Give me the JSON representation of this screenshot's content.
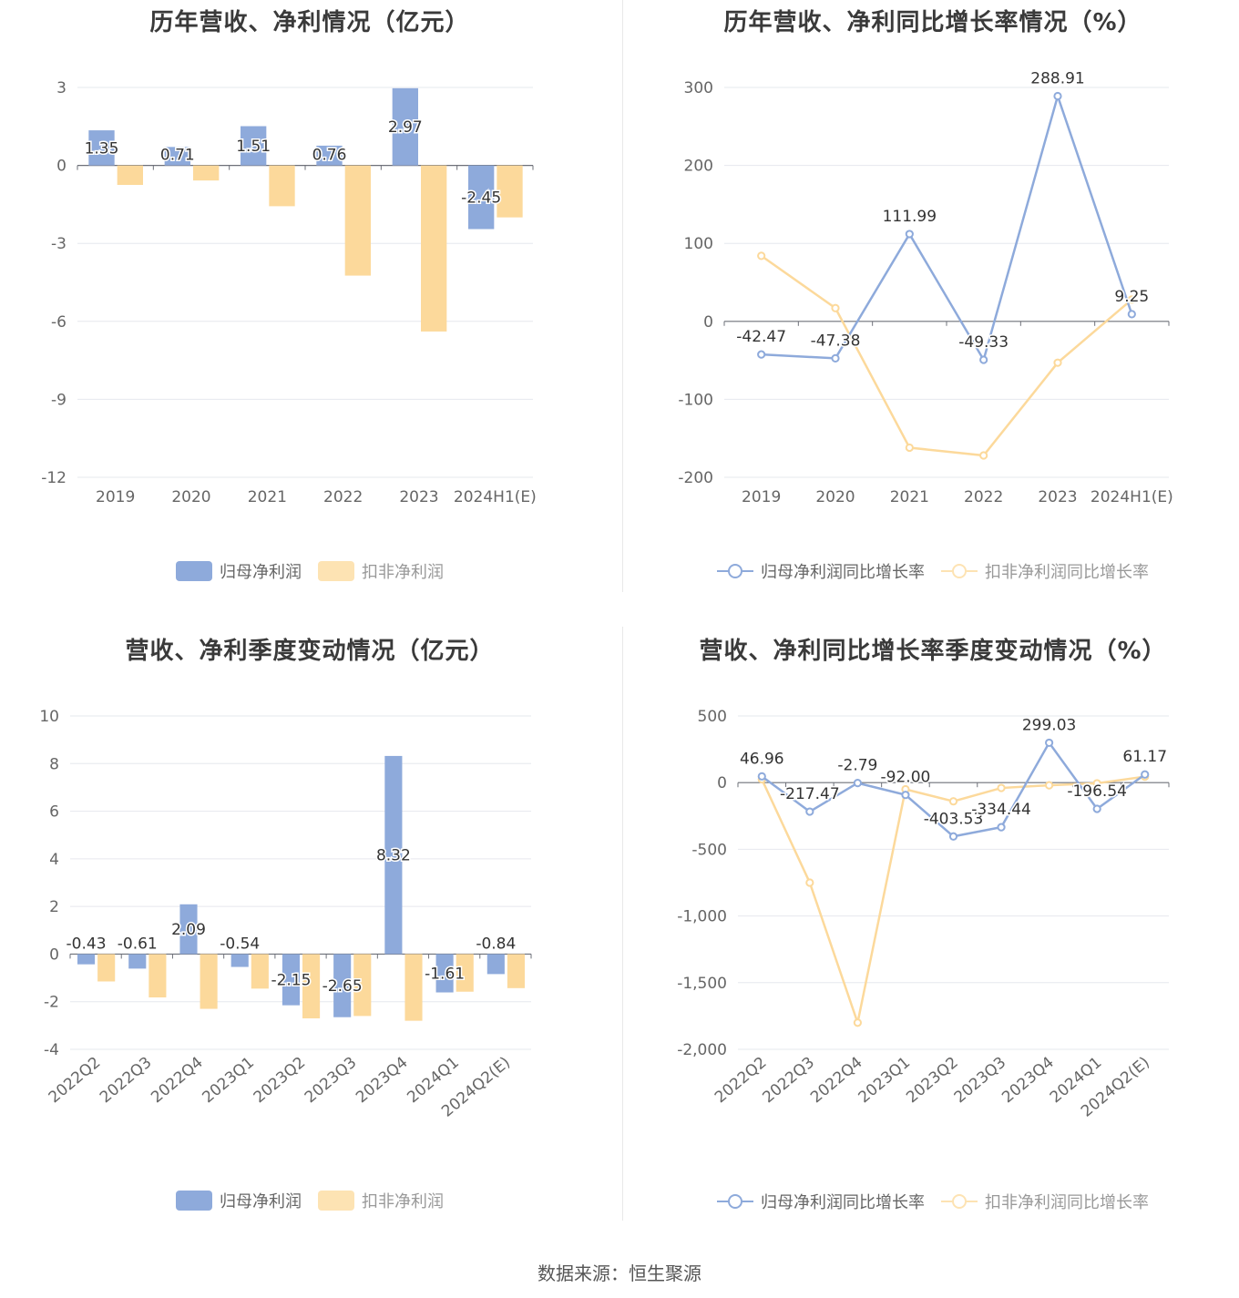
{
  "colors": {
    "blue": "#8eaadb",
    "yellow": "#fcd99b",
    "axis": "#666666",
    "grid": "#e6e8ee",
    "text": "#333333"
  },
  "source": "数据来源：恒生聚源",
  "chart_data": [
    {
      "id": "annual-profit",
      "type": "bar",
      "title": "历年营收、净利情况（亿元）",
      "categories": [
        "2019",
        "2020",
        "2021",
        "2022",
        "2023",
        "2024H1(E)"
      ],
      "series": [
        {
          "name": "归母净利润",
          "color": "#8eaadb",
          "values": [
            1.35,
            0.71,
            1.51,
            0.76,
            2.97,
            -2.45
          ],
          "labels": [
            "1.35",
            "0.71",
            "1.51",
            "0.76",
            "2.97",
            "-2.45"
          ]
        },
        {
          "name": "扣非净利润",
          "color": "#fcd99b",
          "values": [
            -0.75,
            -0.58,
            -1.57,
            -4.24,
            -6.39,
            -2.0
          ]
        }
      ],
      "yticks": [
        3,
        0,
        -3,
        -6,
        -9,
        -12
      ],
      "ylim": [
        -12,
        3
      ]
    },
    {
      "id": "annual-growth",
      "type": "line",
      "title": "历年营收、净利同比增长率情况（%）",
      "categories": [
        "2019",
        "2020",
        "2021",
        "2022",
        "2023",
        "2024H1(E)"
      ],
      "series": [
        {
          "name": "归母净利润同比增长率",
          "color": "#8eaadb",
          "values": [
            -42.47,
            -47.38,
            111.99,
            -49.33,
            288.91,
            9.25
          ],
          "labels": [
            "-42.47",
            "-47.38",
            "111.99",
            "-49.33",
            "288.91",
            "9.25"
          ]
        },
        {
          "name": "扣非净利润同比增长率",
          "color": "#fcd99b",
          "values": [
            84,
            17,
            -162,
            -172,
            -53,
            28
          ]
        }
      ],
      "yticks": [
        300,
        200,
        100,
        0,
        -100,
        -200
      ],
      "ylim": [
        -200,
        300
      ]
    },
    {
      "id": "quarterly-profit",
      "type": "bar",
      "title": "营收、净利季度变动情况（亿元）",
      "categories": [
        "2022Q2",
        "2022Q3",
        "2022Q4",
        "2023Q1",
        "2023Q2",
        "2023Q3",
        "2023Q4",
        "2024Q1",
        "2024Q2(E)"
      ],
      "series": [
        {
          "name": "归母净利润",
          "color": "#8eaadb",
          "values": [
            -0.43,
            -0.61,
            2.09,
            -0.54,
            -2.15,
            -2.65,
            8.32,
            -1.61,
            -0.84
          ],
          "labels": [
            "-0.43",
            "-0.61",
            "2.09",
            "-0.54",
            "-2.15",
            "-2.65",
            "8.32",
            "-1.61",
            "-0.84"
          ]
        },
        {
          "name": "扣非净利润",
          "color": "#fcd99b",
          "values": [
            -1.15,
            -1.82,
            -2.3,
            -1.45,
            -2.7,
            -2.6,
            -2.8,
            -1.58,
            -1.43
          ]
        }
      ],
      "yticks": [
        10,
        8,
        6,
        4,
        2,
        0,
        -2,
        -4
      ],
      "ylim": [
        -4,
        10
      ]
    },
    {
      "id": "quarterly-growth",
      "type": "line",
      "title": "营收、净利同比增长率季度变动情况（%）",
      "categories": [
        "2022Q2",
        "2022Q3",
        "2022Q4",
        "2023Q1",
        "2023Q2",
        "2023Q3",
        "2023Q4",
        "2024Q1",
        "2024Q2(E)"
      ],
      "series": [
        {
          "name": "归母净利润同比增长率",
          "color": "#8eaadb",
          "values": [
            46.96,
            -217.47,
            -2.79,
            -92.0,
            -403.53,
            -334.44,
            299.03,
            -196.54,
            61.17
          ],
          "labels": [
            "46.96",
            "-217.47",
            "-2.79",
            "-92.00",
            "-403.53",
            "-334.44",
            "299.03",
            "-196.54",
            "61.17"
          ]
        },
        {
          "name": "扣非净利润同比增长率",
          "color": "#fcd99b",
          "values": [
            25,
            -750,
            -1800,
            -50,
            -140,
            -40,
            -20,
            -5,
            45
          ]
        }
      ],
      "yticks": [
        "500",
        "0",
        "-500",
        "-1,000",
        "-1,500",
        "-2,000"
      ],
      "ylim": [
        -2000,
        500
      ]
    }
  ]
}
